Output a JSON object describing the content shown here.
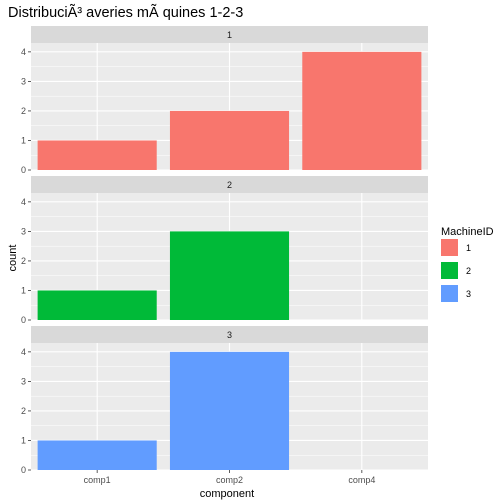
{
  "chart_data": {
    "type": "bar",
    "title": "DistribuciÃ³ averies mÃ quines 1-2-3",
    "xlabel": "component",
    "ylabel": "count",
    "categories": [
      "comp1",
      "comp2",
      "comp4"
    ],
    "ylim": [
      0,
      4.3
    ],
    "y_ticks": [
      "0",
      "1",
      "2",
      "3",
      "4"
    ],
    "facet_layout": "vertical",
    "grid": true,
    "legend": {
      "title": "MachineID",
      "placement": "right",
      "items": [
        {
          "label": "1",
          "color": "#F8766D"
        },
        {
          "label": "2",
          "color": "#00BA38"
        },
        {
          "label": "3",
          "color": "#619CFF"
        }
      ]
    },
    "facets": [
      {
        "label": "1",
        "color": "#F8766D",
        "values": [
          1,
          2,
          4
        ]
      },
      {
        "label": "2",
        "color": "#00BA38",
        "values": [
          1,
          3,
          null
        ]
      },
      {
        "label": "3",
        "color": "#619CFF",
        "values": [
          1,
          4,
          null
        ]
      }
    ]
  },
  "colors": {
    "panel_bg": "#EBEBEB",
    "strip_bg": "#D9D9D9",
    "grid_major": "#FFFFFF"
  }
}
